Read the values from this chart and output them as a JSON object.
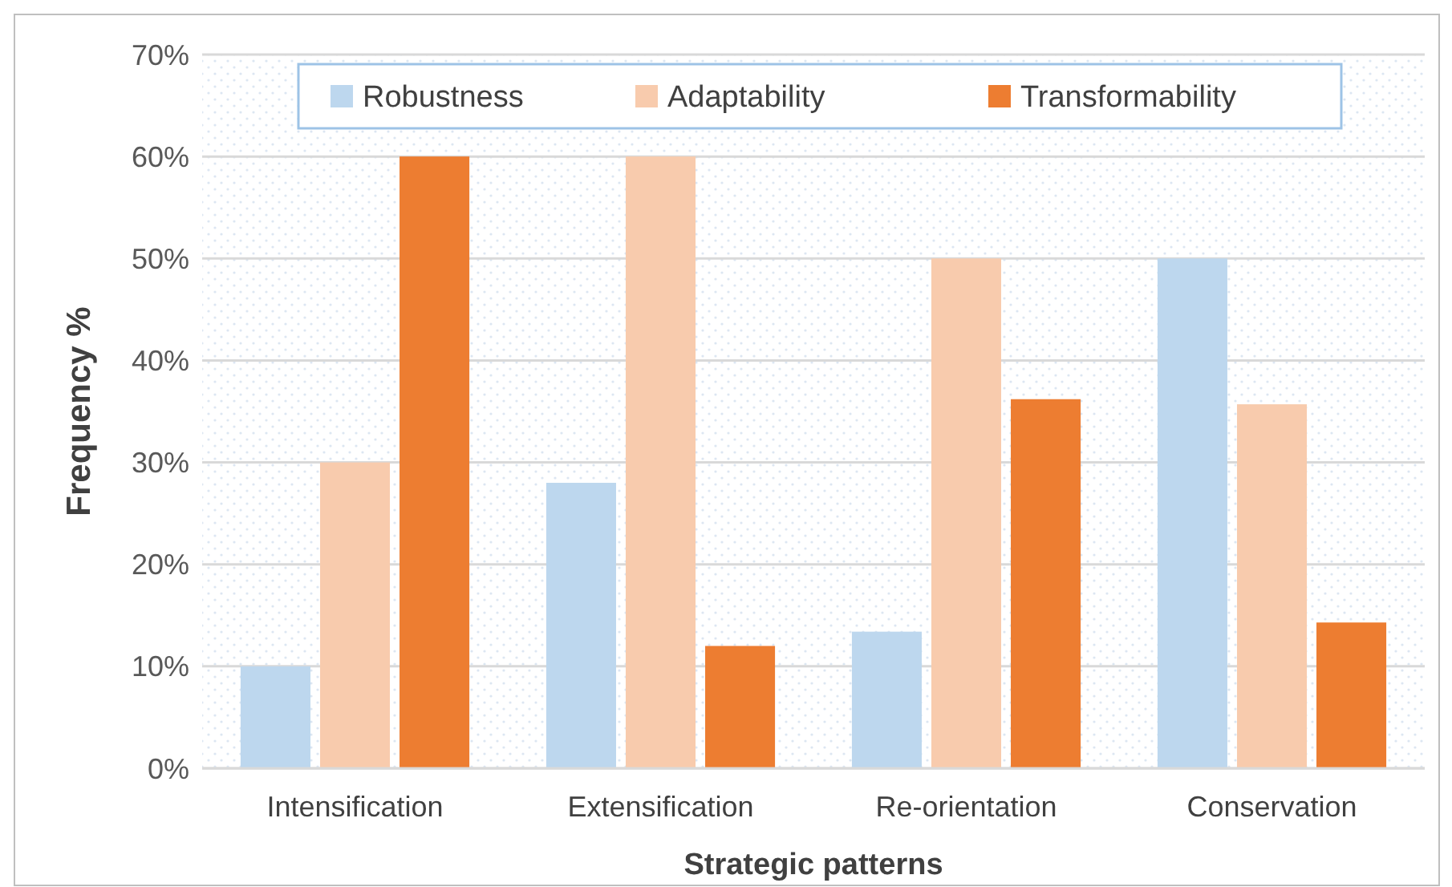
{
  "chart_data": {
    "type": "bar",
    "xlabel": "Strategic patterns",
    "ylabel": "Frequency %",
    "categories": [
      "Intensification",
      "Extensification",
      "Re-orientation",
      "Conservation"
    ],
    "series": [
      {
        "name": "Robustness",
        "color": "#bdd7ee",
        "values": [
          10,
          28,
          13.4,
          50
        ]
      },
      {
        "name": "Adaptability",
        "color": "#f8cbad",
        "values": [
          30,
          60,
          50,
          35.7
        ]
      },
      {
        "name": "Transformability",
        "color": "#ed7d31",
        "values": [
          60,
          12,
          36.2,
          14.3
        ]
      }
    ],
    "ylim": [
      0,
      70
    ],
    "yticks": [
      {
        "value": 0,
        "label": "0%"
      },
      {
        "value": 10,
        "label": "10%"
      },
      {
        "value": 20,
        "label": "20%"
      },
      {
        "value": 30,
        "label": "30%"
      },
      {
        "value": 40,
        "label": "40%"
      },
      {
        "value": 50,
        "label": "50%"
      },
      {
        "value": 60,
        "label": "60%"
      },
      {
        "value": 70,
        "label": "70%"
      }
    ],
    "grid": "y",
    "legend": "top"
  }
}
